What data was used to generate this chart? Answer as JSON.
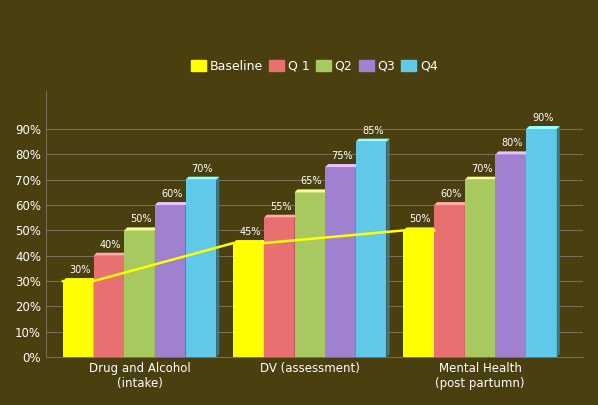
{
  "categories": [
    "Drug and Alcohol\n(intake)",
    "DV (assessment)",
    "Mental Health\n(post partumn)"
  ],
  "series": {
    "Baseline": [
      0.3,
      0.45,
      0.5
    ],
    "Q 1": [
      0.4,
      0.55,
      0.6
    ],
    "Q2": [
      0.5,
      0.65,
      0.7
    ],
    "Q3": [
      0.6,
      0.75,
      0.8
    ],
    "Q4": [
      0.7,
      0.85,
      0.9
    ]
  },
  "series_order": [
    "Baseline",
    "Q 1",
    "Q2",
    "Q3",
    "Q4"
  ],
  "colors": {
    "Baseline": "#FFFF00",
    "Q 1": "#E87070",
    "Q2": "#A8C860",
    "Q3": "#A080D0",
    "Q4": "#60C8E8"
  },
  "bar_labels": {
    "Baseline": [
      "30%",
      "45%",
      "50%"
    ],
    "Q 1": [
      "40%",
      "55%",
      "60%"
    ],
    "Q2": [
      "50%",
      "65%",
      "70%"
    ],
    "Q3": [
      "60%",
      "75%",
      "80%"
    ],
    "Q4": [
      "70%",
      "85%",
      "90%"
    ]
  },
  "background_color": "#4a400f",
  "plot_bg_color": "#4a400f",
  "ylim": [
    0,
    1.0
  ],
  "yticks": [
    0.0,
    0.1,
    0.2,
    0.3,
    0.4,
    0.5,
    0.6,
    0.7,
    0.8,
    0.9
  ],
  "ytick_labels": [
    "0%",
    "10%",
    "20%",
    "30%",
    "40%",
    "50%",
    "60%",
    "70%",
    "80%",
    "90%"
  ],
  "text_color": "#FFFFFF",
  "label_fontsize": 7,
  "tick_fontsize": 8.5,
  "legend_fontsize": 9,
  "group_width": 0.9,
  "bar_gap": 0.0
}
